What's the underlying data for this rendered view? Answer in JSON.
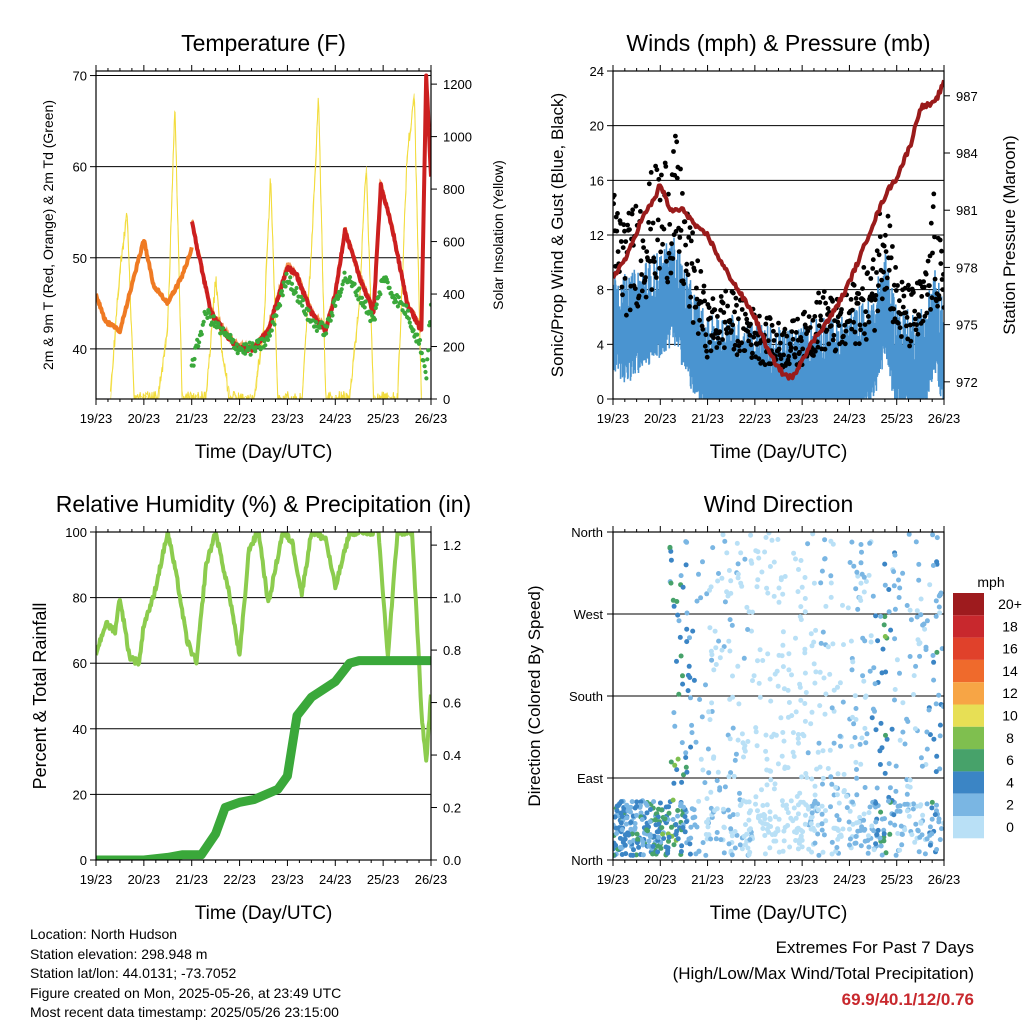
{
  "colors": {
    "temp_2m": "#cc1f1f",
    "temp_9m": "#ef7a23",
    "dewpoint": "#3aa83a",
    "solar": "#f2dc3c",
    "gust": "#000000",
    "wind": "#4a94d0",
    "pressure": "#9a1b1b",
    "humidity": "#8ccc4e",
    "precip": "#3aa83a"
  },
  "chart_data": [
    {
      "type": "line",
      "title": "Temperature (F)",
      "xlabel": "Time (Day/UTC)",
      "ylabel": "2m & 9m T (Red, Orange) & 2m Td (Green)",
      "ylabel_right": "Solar Insolation (Yellow)",
      "x_ticks": [
        "19/23",
        "20/23",
        "21/23",
        "22/23",
        "23/23",
        "24/23",
        "25/23",
        "26/23"
      ],
      "ylim": [
        34.5,
        70.5
      ],
      "y_ticks": [
        40,
        50,
        60,
        70
      ],
      "ylim_right": [
        0,
        1250
      ],
      "y_ticks_right": [
        0,
        200,
        400,
        600,
        800,
        1000,
        1200
      ],
      "grid": true,
      "series": [
        {
          "key": "t9",
          "x": [
            0,
            0.2,
            0.5,
            0.8,
            1.0,
            1.2,
            1.5,
            1.8,
            2.0
          ],
          "values": [
            46,
            43,
            42,
            48,
            52,
            47,
            45,
            48,
            51
          ]
        },
        {
          "key": "t2",
          "x": [
            2.0,
            2.4,
            2.8,
            3.0,
            3.3,
            3.6,
            4.0,
            4.2,
            4.5,
            4.8,
            5.0,
            5.2,
            5.5,
            5.8,
            5.95,
            6.2,
            6.5,
            6.8,
            6.9,
            7.0
          ],
          "values": [
            54,
            44,
            41,
            40,
            40,
            42,
            49,
            48,
            44,
            42,
            46,
            53,
            48,
            44,
            58,
            53,
            45,
            42,
            70,
            59
          ]
        },
        {
          "key": "td",
          "x": [
            2.0,
            2.3,
            2.6,
            3.0,
            3.3,
            3.6,
            4.0,
            4.2,
            4.5,
            4.8,
            5.0,
            5.2,
            5.5,
            5.8,
            6.0,
            6.2,
            6.5,
            6.8,
            6.9,
            7.0
          ],
          "values": [
            38,
            44,
            42,
            40,
            40,
            41,
            48,
            46,
            43,
            42,
            45,
            48,
            46,
            43,
            48,
            46,
            44,
            40,
            37,
            45
          ]
        },
        {
          "key": "solar",
          "x": [
            0.3,
            0.5,
            0.65,
            0.8,
            1.3,
            1.5,
            1.65,
            1.8,
            2.3,
            2.5,
            2.65,
            2.8,
            3.3,
            3.5,
            3.65,
            3.8,
            4.3,
            4.5,
            4.65,
            4.8,
            5.3,
            5.5,
            5.65,
            5.8,
            6.3,
            6.5,
            6.65,
            6.8
          ],
          "values": [
            0,
            500,
            700,
            0,
            0,
            280,
            1120,
            0,
            0,
            460,
            150,
            0,
            0,
            260,
            850,
            0,
            0,
            560,
            1150,
            0,
            0,
            360,
            900,
            0,
            0,
            920,
            1170,
            0
          ]
        }
      ]
    },
    {
      "type": "line",
      "title": "Winds (mph) & Pressure (mb)",
      "xlabel": "Time (Day/UTC)",
      "ylabel": "Sonic/Prop Wind & Gust (Blue, Black)",
      "ylabel_right": "Station Pressure (Maroon)",
      "x_ticks": [
        "19/23",
        "20/23",
        "21/23",
        "22/23",
        "23/23",
        "24/23",
        "25/23",
        "26/23"
      ],
      "ylim": [
        0,
        24
      ],
      "y_ticks": [
        0,
        4,
        8,
        12,
        16,
        20,
        24
      ],
      "ylim_right": [
        971.1,
        988.3
      ],
      "y_ticks_right": [
        972,
        975,
        978,
        981,
        984,
        987
      ],
      "grid": true,
      "series": [
        {
          "key": "pressure",
          "x": [
            0,
            0.3,
            0.6,
            0.9,
            1.0,
            1.2,
            1.5,
            1.8,
            2.0,
            2.3,
            2.6,
            3.0,
            3.3,
            3.6,
            3.8,
            4.0,
            4.3,
            4.6,
            4.9,
            5.2,
            5.5,
            5.8,
            6.0,
            6.3,
            6.5,
            6.8,
            7.0
          ],
          "values": [
            977.5,
            978.6,
            980.5,
            981.7,
            982.4,
            981.0,
            981.0,
            980.0,
            979.7,
            978.2,
            977.0,
            975.4,
            973.5,
            972.4,
            972.2,
            973.2,
            974.4,
            975.4,
            976.7,
            978.4,
            980.3,
            982.0,
            982.7,
            984.5,
            986.4,
            986.6,
            987.7
          ]
        }
      ],
      "wind_profile": {
        "x": [
          0,
          0.3,
          0.6,
          1.0,
          1.3,
          1.6,
          2.0,
          2.4,
          2.8,
          3.2,
          3.6,
          4.0,
          4.4,
          4.8,
          5.2,
          5.5,
          5.75,
          6.0,
          6.3,
          6.6,
          6.8,
          7.0
        ],
        "values": [
          6,
          5,
          6,
          7,
          8,
          5,
          2,
          2.5,
          2,
          1.5,
          1.2,
          1.5,
          2.5,
          2,
          3,
          3.5,
          7,
          3,
          2.5,
          3,
          6,
          3
        ]
      }
    },
    {
      "type": "line",
      "title": "Relative Humidity (%) & Precipitation (in)",
      "xlabel": "Time (Day/UTC)",
      "ylabel": "Percent & Total Rainfall",
      "x_ticks": [
        "19/23",
        "20/23",
        "21/23",
        "22/23",
        "23/23",
        "24/23",
        "25/23",
        "26/23"
      ],
      "ylim": [
        0,
        100
      ],
      "y_ticks": [
        0,
        20,
        40,
        60,
        80,
        100
      ],
      "ylim_right": [
        0,
        1.25
      ],
      "y_ticks_right": [
        0.0,
        0.2,
        0.4,
        0.6,
        0.8,
        1.0,
        1.2
      ],
      "grid": true,
      "series": [
        {
          "key": "rh",
          "x": [
            0,
            0.2,
            0.4,
            0.5,
            0.7,
            0.9,
            1.0,
            1.2,
            1.5,
            1.7,
            1.9,
            2.1,
            2.3,
            2.5,
            2.8,
            3.0,
            3.2,
            3.4,
            3.6,
            3.9,
            4.1,
            4.3,
            4.5,
            4.8,
            5.0,
            5.3,
            5.5,
            5.7,
            5.9,
            6.1,
            6.3,
            6.6,
            6.7,
            6.8,
            6.9,
            7.0
          ],
          "values": [
            63,
            72,
            70,
            80,
            62,
            60,
            72,
            80,
            100,
            85,
            67,
            60,
            90,
            100,
            80,
            62,
            95,
            100,
            78,
            100,
            97,
            81,
            100,
            98,
            83,
            100,
            100,
            100,
            100,
            62,
            100,
            100,
            75,
            45,
            30,
            50
          ]
        },
        {
          "key": "precip",
          "x": [
            0,
            1.0,
            1.5,
            1.8,
            2.2,
            2.5,
            2.7,
            3.0,
            3.3,
            3.8,
            4.0,
            4.2,
            4.5,
            5.0,
            5.3,
            5.5,
            6.0,
            7.0
          ],
          "values": [
            0,
            0,
            0.01,
            0.02,
            0.02,
            0.1,
            0.2,
            0.22,
            0.23,
            0.27,
            0.32,
            0.55,
            0.62,
            0.68,
            0.75,
            0.76,
            0.76,
            0.76
          ]
        }
      ]
    },
    {
      "type": "scatter",
      "title": "Wind Direction",
      "xlabel": "Time (Day/UTC)",
      "ylabel": "Direction (Colored By Speed)",
      "x_ticks": [
        "19/23",
        "20/23",
        "21/23",
        "22/23",
        "23/23",
        "24/23",
        "25/23",
        "26/23"
      ],
      "y_ticks": [
        "North",
        "East",
        "South",
        "West",
        "North"
      ],
      "ylim": [
        0,
        360
      ],
      "grid": true,
      "legend": {
        "title": "mph",
        "labels": [
          "20+",
          "18",
          "16",
          "14",
          "12",
          "10",
          "8",
          "6",
          "4",
          "2",
          "0"
        ],
        "colors": [
          "#9e1b1e",
          "#c8282d",
          "#e0412b",
          "#ef6a2c",
          "#f7a545",
          "#e7df55",
          "#7fbf4f",
          "#47a26a",
          "#3b85c5",
          "#7ab6e3",
          "#b9e0f6"
        ],
        "placement": "right"
      }
    }
  ],
  "info": {
    "location": "Location: North Hudson",
    "elevation": "Station elevation: 298.948 m",
    "latlon": "Station lat/lon: 44.0131; -73.7052",
    "created": "Figure created on Mon, 2025-05-26, at 23:49 UTC",
    "timestamp": "Most recent data timestamp: 2025/05/26 23:15:00"
  },
  "extremes": {
    "title": "Extremes For Past 7 Days",
    "subtitle": "(High/Low/Max Wind/Total Precipitation)",
    "values": "69.9/40.1/12/0.76"
  }
}
